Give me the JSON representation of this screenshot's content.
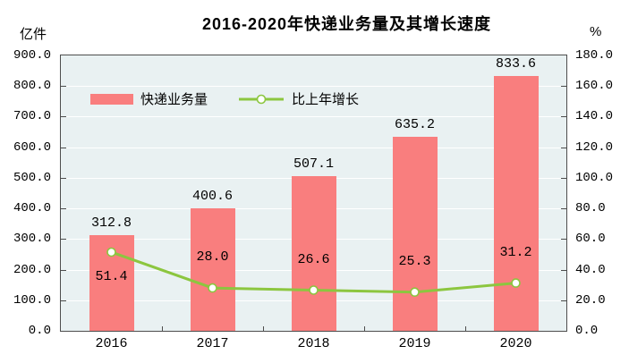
{
  "chart_data": {
    "type": "combo-bar-line",
    "title": "2016-2020年快递业务量及其增长速度",
    "categories": [
      "2016",
      "2017",
      "2018",
      "2019",
      "2020"
    ],
    "series": [
      {
        "name": "快递业务量",
        "chart": "bar",
        "axis": "left",
        "unit": "亿件",
        "values": [
          312.8,
          400.6,
          507.1,
          635.2,
          833.6
        ],
        "labels": [
          "312.8",
          "400.6",
          "507.1",
          "635.2",
          "833.6"
        ],
        "color": "#F97E7E"
      },
      {
        "name": "比上年增长",
        "chart": "line",
        "axis": "right",
        "unit": "%",
        "values": [
          51.4,
          28.0,
          26.6,
          25.3,
          31.2
        ],
        "labels": [
          "51.4",
          "28.0",
          "26.6",
          "25.3",
          "31.2"
        ],
        "color": "#8CC63F",
        "marker": "circle-white-fill"
      }
    ],
    "axes": {
      "left": {
        "unit": "亿件",
        "min": 0,
        "max": 900,
        "step": 100,
        "tick_labels": [
          "900.0",
          "800.0",
          "700.0",
          "600.0",
          "500.0",
          "400.0",
          "300.0",
          "200.0",
          "100.0",
          "0.0"
        ]
      },
      "right": {
        "unit": "%",
        "min": 0,
        "max": 180,
        "step": 20,
        "tick_labels": [
          "180.0",
          "160.0",
          "140.0",
          "120.0",
          "100.0",
          "80.0",
          "60.0",
          "40.0",
          "20.0",
          "0.0"
        ]
      }
    },
    "legend": {
      "position": "inside-top-left",
      "entries": [
        "快递业务量",
        "比上年增长"
      ]
    },
    "style": {
      "plot_background": "#E9F1F2",
      "gridline_color": "#FFFFFF",
      "border_color": "#4D4D4D",
      "text_color": "#000000",
      "grid": "horizontal"
    }
  }
}
